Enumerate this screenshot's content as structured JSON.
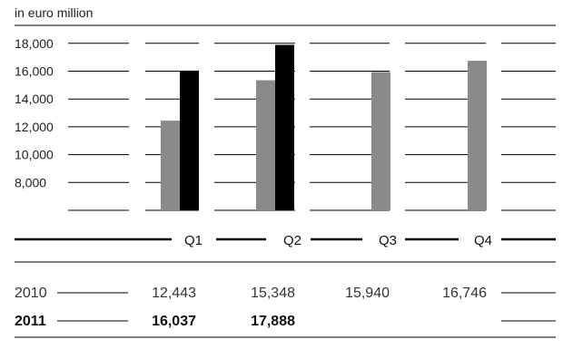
{
  "chart_data": {
    "type": "bar",
    "unit_label": "in euro million",
    "categories": [
      "Q1",
      "Q2",
      "Q3",
      "Q4"
    ],
    "series": [
      {
        "name": "2010",
        "values": [
          12443,
          15348,
          15940,
          16746
        ],
        "color": "#8a8a8a",
        "bold": false
      },
      {
        "name": "2011",
        "values": [
          16037,
          17888,
          null,
          null
        ],
        "color": "#000000",
        "bold": true
      }
    ],
    "value_labels": [
      [
        "12,443",
        "15,348",
        "15,940",
        "16,746"
      ],
      [
        "16,037",
        "17,888",
        "",
        ""
      ]
    ],
    "y_ticks": [
      8000,
      10000,
      12000,
      14000,
      16000,
      18000
    ],
    "y_tick_labels": [
      "8,000",
      "10,000",
      "12,000",
      "14,000",
      "16,000",
      "18,000"
    ],
    "ylim": [
      6000,
      19000
    ],
    "grid": true,
    "legend": "table-below"
  }
}
